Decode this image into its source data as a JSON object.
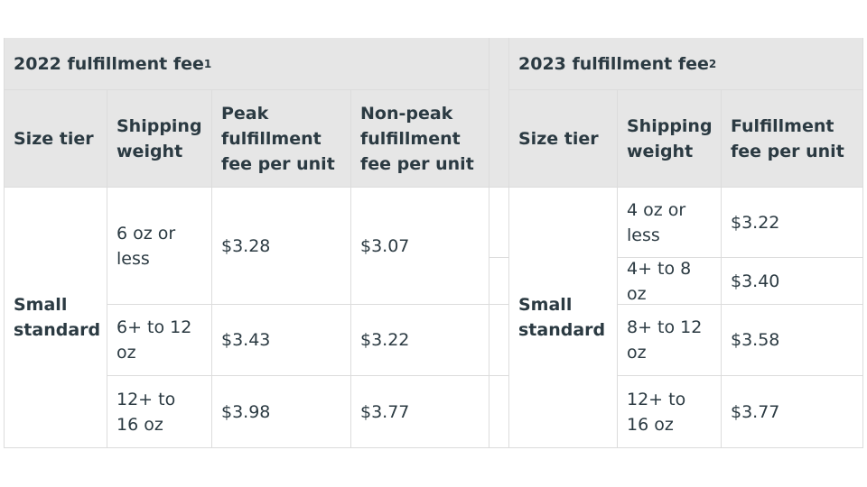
{
  "table_2022": {
    "title": "2022 fulfillment fee",
    "title_note": "1",
    "headers": [
      "Size tier",
      "Shipping weight",
      "Peak fulfillment fee per unit",
      "Non-peak fulfillment fee per unit"
    ],
    "size_tier": "Small standard",
    "rows": [
      {
        "weight": "6 oz or less",
        "peak": "$3.28",
        "nonpeak": "$3.07"
      },
      {
        "weight": "6+ to 12 oz",
        "peak": "$3.43",
        "nonpeak": "$3.22"
      },
      {
        "weight": "12+ to 16 oz",
        "peak": "$3.98",
        "nonpeak": "$3.77"
      }
    ]
  },
  "table_2023": {
    "title": "2023 fulfillment fee",
    "title_note": "2",
    "headers": [
      "Size tier",
      "Shipping weight",
      "Fulfillment fee per unit"
    ],
    "size_tier": "Small standard",
    "rows": [
      {
        "weight": "4 oz or less",
        "fee": "$3.22"
      },
      {
        "weight": "4+ to 8 oz",
        "fee": "$3.40"
      },
      {
        "weight": "8+ to 12 oz",
        "fee": "$3.58"
      },
      {
        "weight": "12+ to 16 oz",
        "fee": "$3.77"
      }
    ]
  }
}
